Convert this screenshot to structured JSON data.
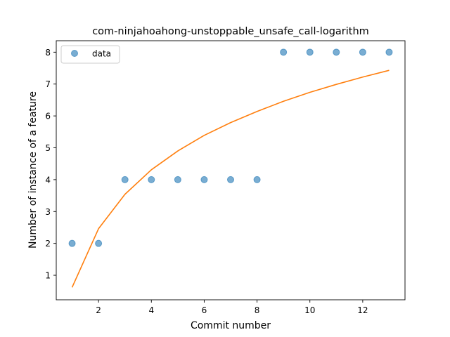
{
  "chart_data": {
    "type": "scatter",
    "title": "com-ninjahoahong-unstoppable_unsafe_call-logarithm",
    "xlabel": "Commit number",
    "ylabel": "Number of instance of a feature",
    "xlim": [
      0.4,
      13.6
    ],
    "ylim": [
      0.23,
      8.36
    ],
    "xticks": [
      2,
      4,
      6,
      8,
      10,
      12
    ],
    "yticks": [
      1,
      2,
      3,
      4,
      5,
      6,
      7,
      8
    ],
    "grid": false,
    "legend_position": "top-left",
    "series": [
      {
        "name": "data",
        "kind": "scatter",
        "color": "#1f77b4",
        "x": [
          1,
          2,
          3,
          4,
          5,
          6,
          7,
          8,
          9,
          10,
          11,
          12,
          13
        ],
        "y": [
          2,
          2,
          4,
          4,
          4,
          4,
          4,
          4,
          8,
          8,
          8,
          8,
          8
        ]
      },
      {
        "kind": "line",
        "color": "#ff7f0e",
        "x": [
          1,
          2,
          3,
          4,
          5,
          6,
          7,
          8,
          9,
          10,
          11,
          12,
          13
        ],
        "y": [
          0.62,
          2.46,
          3.54,
          4.31,
          4.9,
          5.39,
          5.79,
          6.14,
          6.46,
          6.74,
          6.99,
          7.22,
          7.43
        ]
      }
    ]
  }
}
